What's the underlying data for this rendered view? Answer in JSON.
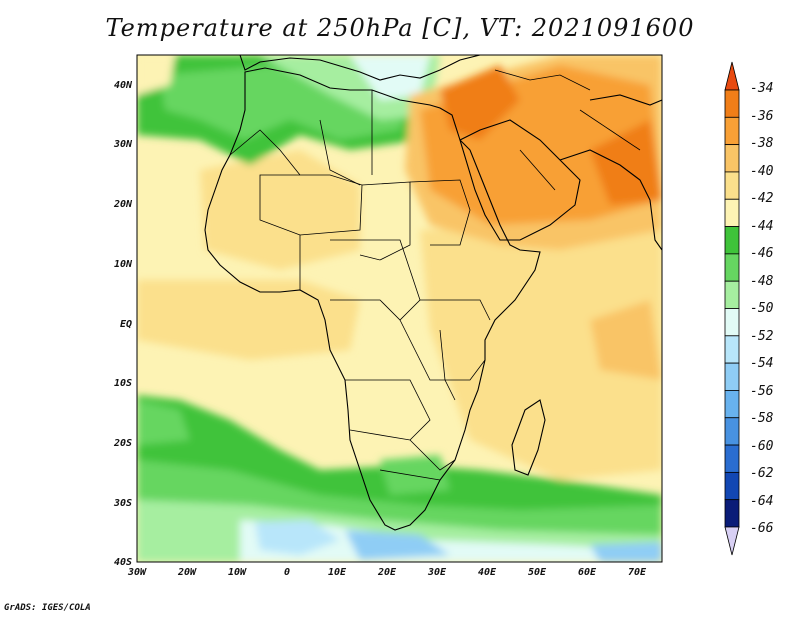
{
  "title": "Temperature at 250hPa [C], VT: 2021091600",
  "credit": "GrADS: IGES/COLA",
  "lat_labels": [
    "40N",
    "30N",
    "20N",
    "10N",
    "EQ",
    "10S",
    "20S",
    "30S",
    "40S"
  ],
  "lon_labels": [
    "30W",
    "20W",
    "10W",
    "0",
    "10E",
    "20E",
    "30E",
    "40E",
    "50E",
    "60E",
    "70E"
  ],
  "colorbar": {
    "labels": [
      "-34",
      "-36",
      "-38",
      "-40",
      "-42",
      "-44",
      "-46",
      "-48",
      "-50",
      "-52",
      "-54",
      "-56",
      "-58",
      "-60",
      "-62",
      "-64",
      "-66"
    ],
    "colors": [
      "#e84a10",
      "#f07e18",
      "#f8a036",
      "#f9c466",
      "#fbe08c",
      "#fdf3b4",
      "#3fc33a",
      "#66d661",
      "#a6eea0",
      "#e2fbf6",
      "#b8e6fa",
      "#8fcdf5",
      "#68b2ee",
      "#4892e1",
      "#2a6dd0",
      "#1247b3",
      "#0a1c78"
    ]
  },
  "map_region": {
    "lon_range": [
      -30,
      75
    ],
    "lat_range": [
      -40,
      45
    ]
  }
}
